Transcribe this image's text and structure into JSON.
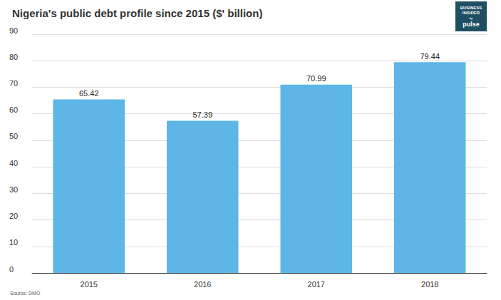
{
  "chart_data": {
    "type": "bar",
    "title": "Nigeria's public debt profile since 2015 ($' billion)",
    "categories": [
      "2015",
      "2016",
      "2017",
      "2018"
    ],
    "values": [
      65.42,
      57.39,
      70.99,
      79.44
    ],
    "color": "#5db6e6",
    "ylim": [
      0,
      90
    ],
    "yticks": [
      0,
      10,
      20,
      30,
      40,
      50,
      60,
      70,
      80,
      90
    ],
    "grid": true,
    "data_labels": true,
    "source": "Source: DMO",
    "logo": [
      "BUSINESS",
      "INSIDER",
      "by",
      "pulse"
    ]
  }
}
